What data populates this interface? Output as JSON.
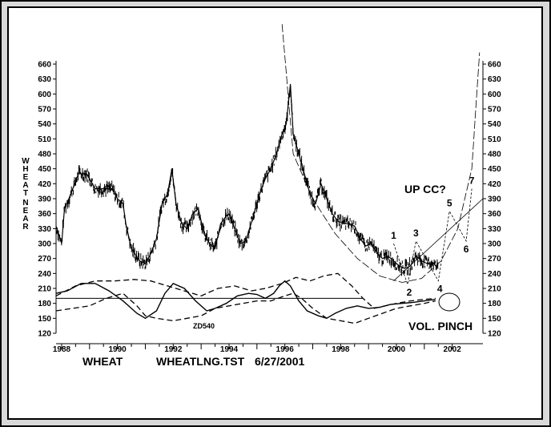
{
  "chart_data": {
    "type": "line",
    "ylabel_left": "WHEAT",
    "ylabel_right": "NEAR",
    "ylim": [
      120,
      660
    ],
    "y_ticks": [
      120,
      150,
      180,
      210,
      240,
      270,
      300,
      330,
      360,
      390,
      420,
      450,
      480,
      510,
      540,
      570,
      600,
      630,
      660
    ],
    "xlim": [
      1987.8,
      2003.1
    ],
    "x_ticks": [
      1988,
      1990,
      1992,
      1994,
      1996,
      1998,
      2000,
      2002
    ],
    "footer": {
      "symbol": "WHEAT",
      "file": "WHEATLNG.TST",
      "date": "6/27/2001"
    },
    "annotations": {
      "up_cc": "UP CC?",
      "vol_pinch": "VOL. PINCH",
      "indicator": "ZD540",
      "waves": [
        {
          "label": "1",
          "x": 1999.9,
          "y": 300
        },
        {
          "label": "2",
          "x": 2000.4,
          "y": 218
        },
        {
          "label": "3",
          "x": 2000.7,
          "y": 305
        },
        {
          "label": "4",
          "x": 2001.5,
          "y": 225
        },
        {
          "label": "5",
          "x": 2001.9,
          "y": 365
        },
        {
          "label": "6",
          "x": 2002.5,
          "y": 305
        },
        {
          "label": "7",
          "x": 2002.7,
          "y": 410
        }
      ]
    },
    "series": [
      {
        "style": "price",
        "x": [
          1987.8,
          1988.0,
          1988.1,
          1988.3,
          1988.6,
          1988.9,
          1989.2,
          1989.5,
          1989.8,
          1990.0,
          1990.2,
          1990.3,
          1990.5,
          1990.8,
          1991.0,
          1991.2,
          1991.4,
          1991.6,
          1991.8,
          1991.95,
          1992.1,
          1992.3,
          1992.5,
          1992.7,
          1992.9,
          1993.1,
          1993.3,
          1993.5,
          1993.7,
          1993.9,
          1994.0,
          1994.2,
          1994.4,
          1994.6,
          1994.9,
          1995.1,
          1995.3,
          1995.5,
          1995.7,
          1995.9,
          1996.05,
          1996.2,
          1996.3,
          1996.5,
          1996.7,
          1996.9,
          1997.1,
          1997.3,
          1997.5,
          1997.7,
          1997.9,
          1998.1,
          1998.3,
          1998.5,
          1998.7,
          1998.9,
          1999.1,
          1999.3,
          1999.5,
          1999.7,
          1999.9,
          2000.1,
          2000.3,
          2000.5,
          2000.7,
          2000.9,
          2001.1,
          2001.3,
          2001.5
        ],
        "y": [
          335,
          300,
          370,
          395,
          440,
          440,
          410,
          410,
          410,
          390,
          380,
          340,
          290,
          265,
          260,
          280,
          310,
          380,
          400,
          450,
          380,
          340,
          330,
          360,
          370,
          320,
          300,
          290,
          340,
          355,
          360,
          330,
          300,
          305,
          360,
          400,
          430,
          450,
          480,
          520,
          540,
          620,
          520,
          480,
          440,
          400,
          380,
          420,
          390,
          360,
          345,
          340,
          340,
          335,
          310,
          295,
          300,
          280,
          270,
          275,
          265,
          255,
          250,
          255,
          275,
          265,
          260,
          262,
          250
        ]
      },
      {
        "style": "oscillator",
        "x": [
          1987.8,
          1988.2,
          1988.7,
          1989.2,
          1989.7,
          1990.2,
          1990.7,
          1991.0,
          1991.4,
          1991.7,
          1992.0,
          1992.4,
          1992.8,
          1993.2,
          1993.5,
          1993.9,
          1994.3,
          1994.7,
          1995.0,
          1995.3,
          1995.6,
          1995.8,
          1996.0,
          1996.2,
          1996.5,
          1996.8,
          1997.2,
          1997.5,
          1997.8,
          1998.2,
          1998.6,
          1999.0,
          1999.4,
          1999.8,
          2000.2,
          2000.6,
          2001.0,
          2001.4
        ],
        "y": [
          200,
          205,
          220,
          220,
          205,
          185,
          160,
          150,
          165,
          200,
          220,
          210,
          185,
          165,
          170,
          180,
          195,
          200,
          198,
          190,
          200,
          215,
          225,
          215,
          185,
          165,
          155,
          150,
          160,
          170,
          175,
          170,
          172,
          178,
          180,
          182,
          185,
          188
        ]
      },
      {
        "style": "upper-band",
        "x": [
          1987.8,
          1988.5,
          1989.2,
          1989.9,
          1990.6,
          1991.2,
          1991.8,
          1992.4,
          1993.0,
          1993.6,
          1994.2,
          1994.8,
          1995.3,
          1995.9,
          1996.4,
          1996.9,
          1997.4,
          1997.9,
          1998.4,
          1998.8,
          1999.2,
          1999.6,
          2000.0,
          2000.5,
          2001.0,
          2001.4
        ],
        "y": [
          195,
          215,
          225,
          225,
          228,
          225,
          215,
          205,
          195,
          210,
          215,
          205,
          210,
          220,
          232,
          225,
          235,
          240,
          215,
          190,
          170,
          175,
          180,
          185,
          188,
          190
        ]
      },
      {
        "style": "lower-band",
        "x": [
          1987.8,
          1988.4,
          1989.0,
          1989.6,
          1990.2,
          1990.7,
          1991.0,
          1991.4,
          1992.0,
          1992.5,
          1993.0,
          1993.5,
          1994.0,
          1994.5,
          1995.0,
          1995.5,
          1996.0,
          1996.3,
          1996.6,
          1997.0,
          1997.5,
          1998.0,
          1998.5,
          1999.0,
          1999.5,
          2000.0,
          2000.5,
          2001.0,
          2001.4
        ],
        "y": [
          165,
          170,
          175,
          190,
          200,
          175,
          155,
          150,
          145,
          150,
          155,
          170,
          175,
          180,
          185,
          185,
          195,
          200,
          190,
          170,
          150,
          145,
          140,
          150,
          160,
          170,
          175,
          180,
          185
        ]
      },
      {
        "style": "zero-line",
        "x": [
          1987.8,
          1998.8
        ],
        "y": [
          190,
          190
        ]
      },
      {
        "style": "cycle-arc",
        "x": [
          1995.9,
          1996.3,
          1997.0,
          1997.8,
          1998.6,
          1999.4,
          2000.2,
          2000.9,
          2001.6,
          2002.2,
          2002.7,
          2003.0
        ],
        "y": [
          740,
          480,
          390,
          320,
          270,
          235,
          222,
          230,
          265,
          330,
          450,
          700
        ]
      },
      {
        "style": "channel-up",
        "x": [
          1999.9,
          2003.1
        ],
        "y": [
          225,
          390
        ]
      },
      {
        "style": "wave-path",
        "x": [
          1999.9,
          2000.4,
          2000.7,
          2001.5,
          2001.9,
          2002.5,
          2002.7
        ],
        "y": [
          300,
          218,
          305,
          225,
          365,
          305,
          410
        ]
      }
    ]
  }
}
